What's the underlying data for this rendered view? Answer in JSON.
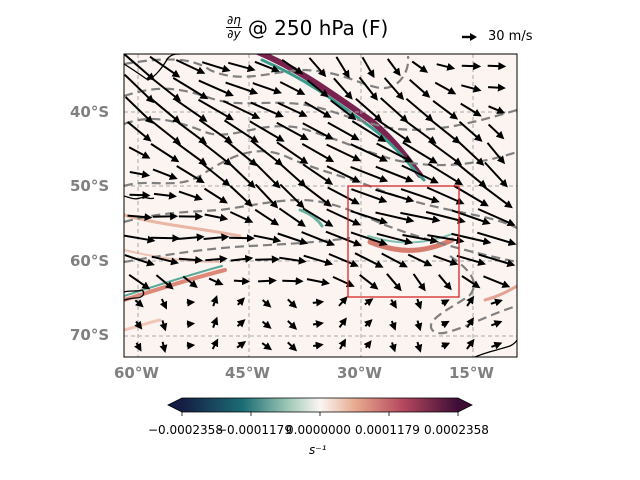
{
  "title": {
    "derivative_numerator": "∂η",
    "derivative_denominator": "∂y",
    "text": "@ 250 hPa (F)"
  },
  "quiver_key": {
    "label": "30 m/s"
  },
  "latitude_labels": [
    "40°S",
    "50°S",
    "60°S",
    "70°S"
  ],
  "longitude_labels": [
    "60°W",
    "45°W",
    "30°W",
    "15°W"
  ],
  "colorbar": {
    "tick_labels": [
      "−0.0002358",
      "−0.0001179",
      "0.0000000",
      "0.0001179",
      "0.0002358"
    ],
    "label": "s⁻¹",
    "cmap": "curl (diverging: dark navy → teal → white → salmon → dark purple)"
  },
  "highlight_box": {
    "color": "#d62728",
    "lon_range": [
      -31,
      -16
    ],
    "lat_range": [
      -65,
      -50
    ]
  },
  "colors": {
    "contour": "#808080",
    "arrow": "#000000",
    "coastline": "#000000",
    "axis_label": "#808080"
  }
}
